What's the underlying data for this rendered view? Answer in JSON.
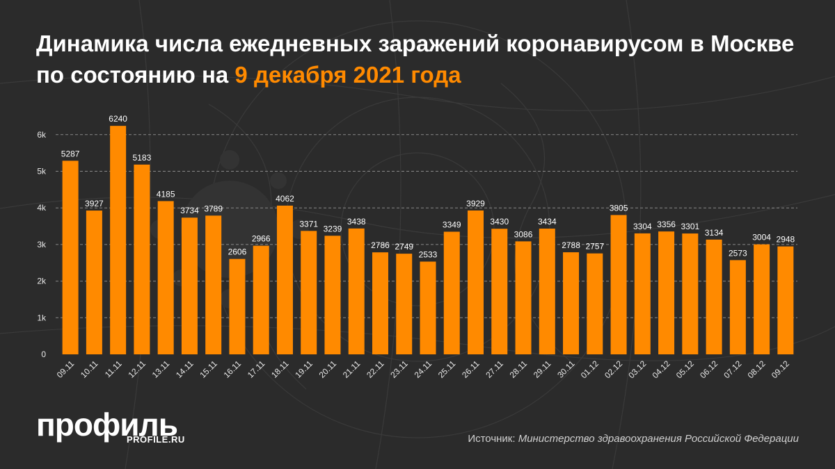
{
  "header": {
    "title_main": "Динамика числа ежедневных заражений коронавирусом в Москве по состоянию на",
    "title_highlight": "9 декабря 2021 года"
  },
  "colors": {
    "background": "#2b2b2b",
    "bar": "#ff8a00",
    "highlight": "#ff8a00",
    "text": "#ffffff"
  },
  "chart_data": {
    "type": "bar",
    "categories": [
      "09.11",
      "10.11",
      "11.11",
      "12.11",
      "13.11",
      "14.11",
      "15.11",
      "16.11",
      "17.11",
      "18.11",
      "19.11",
      "20.11",
      "21.11",
      "22.11",
      "23.11",
      "24.11",
      "25.11",
      "26.11",
      "27.11",
      "28.11",
      "29.11",
      "30.11",
      "01.12",
      "02.12",
      "03.12",
      "04.12",
      "05.12",
      "06.12",
      "07.12",
      "08.12",
      "09.12"
    ],
    "values": [
      5287,
      3927,
      6240,
      5183,
      4185,
      3734,
      3789,
      2606,
      2966,
      4062,
      3371,
      3239,
      3438,
      2786,
      2749,
      2533,
      3349,
      3929,
      3430,
      3086,
      3434,
      2788,
      2757,
      3805,
      3304,
      3356,
      3301,
      3134,
      2573,
      3004,
      2948
    ],
    "y_ticks": [
      "0",
      "1k",
      "2k",
      "3k",
      "4k",
      "5k",
      "6k"
    ],
    "ylim": [
      0,
      6600
    ],
    "grid": true,
    "data_labels": true
  },
  "footer": {
    "logo": "профиль",
    "logo_sub": "PROFILE.RU",
    "source_label": "Источник:",
    "source_value": "Министерство здравоохранения Российской Федерации"
  }
}
